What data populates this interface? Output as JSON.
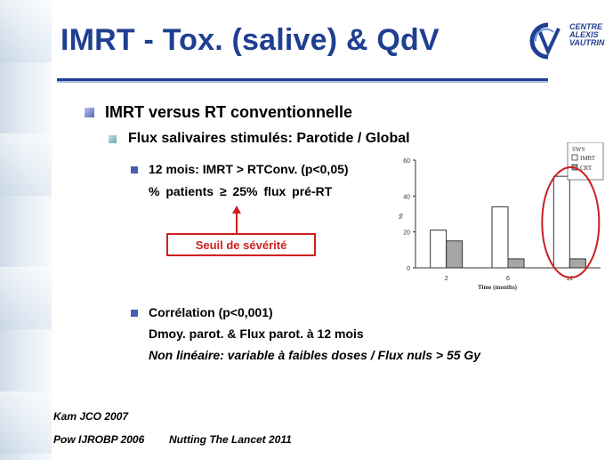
{
  "slide": {
    "title": "IMRT - Tox. (salive) & QdV",
    "logo": {
      "line1": "CENTRE",
      "line2": "ALEXIS",
      "line3": "VAUTRIN",
      "accent": "#1f3f91"
    },
    "bullets": {
      "level1": "IMRT versus RT conventionnelle",
      "level2": "Flux salivaires stimulés: Parotide / Global",
      "point1_line1": "12 mois: IMRT > RTConv. (p<0,05)",
      "point1_line2": "% patients ≥ 25% flux pré-RT",
      "point2_line1": "Corrélation (p<0,001)",
      "point2_line2": "Dmoy. parot. & Flux parot. à 12 mois",
      "point2_line3": "Non linéaire: variable à faibles doses / Flux nuls > 55 Gy"
    },
    "callout": {
      "label": "Seuil de sévérité",
      "color": "#cc1f1f"
    },
    "references": {
      "ref1": "Kam JCO 2007",
      "ref2": "Pow IJROBP 2006",
      "ref3": "Nutting The Lancet 2011"
    }
  },
  "chart_data": {
    "type": "bar",
    "categories": [
      "2",
      "6",
      "12"
    ],
    "series": [
      {
        "name": "IMRT",
        "values": [
          21,
          34,
          51
        ],
        "color": "#ffffff"
      },
      {
        "name": "CRT",
        "values": [
          15,
          5,
          5
        ],
        "color": "#a6a6a6"
      }
    ],
    "legend_title": "SWS",
    "legend_position": "top-right",
    "ylabel": "%",
    "xlabel": "Time (months)",
    "ylim": [
      0,
      60
    ],
    "yticks": [
      "0",
      "20",
      "40",
      "60"
    ],
    "highlight_category": "12",
    "highlight_color": "#cc1f1f"
  }
}
